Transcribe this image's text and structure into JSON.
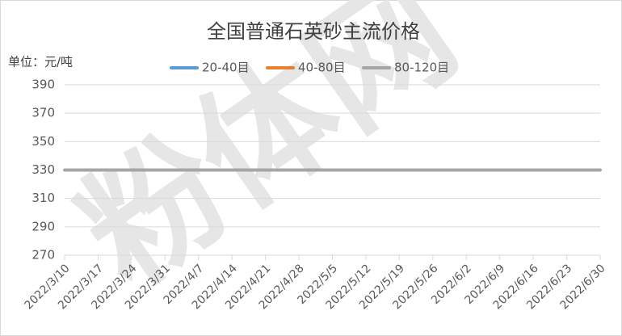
{
  "chart_data": {
    "type": "line",
    "title": "全国普通石英砂主流价格",
    "unit_label": "单位：元/吨",
    "watermark": "粉体网",
    "categories": [
      "2022/3/10",
      "2022/3/17",
      "2022/3/24",
      "2022/3/31",
      "2022/4/7",
      "2022/4/14",
      "2022/4/21",
      "2022/4/28",
      "2022/5/5",
      "2022/5/12",
      "2022/5/19",
      "2022/5/26",
      "2022/6/2",
      "2022/6/9",
      "2022/6/16",
      "2022/6/23",
      "2022/6/30"
    ],
    "series": [
      {
        "name": "20-40目",
        "color": "#5b9bd5",
        "values": [
          330,
          330,
          330,
          330,
          330,
          330,
          330,
          330,
          330,
          330,
          330,
          330,
          330,
          330,
          330,
          330,
          330
        ]
      },
      {
        "name": "40-80目",
        "color": "#ed7d31",
        "values": [
          330,
          330,
          330,
          330,
          330,
          330,
          330,
          330,
          330,
          330,
          330,
          330,
          330,
          330,
          330,
          330,
          330
        ]
      },
      {
        "name": "80-120目",
        "color": "#a5a5a5",
        "values": [
          330,
          330,
          330,
          330,
          330,
          330,
          330,
          330,
          330,
          330,
          330,
          330,
          330,
          330,
          330,
          330,
          330
        ]
      }
    ],
    "ylim": [
      270,
      390
    ],
    "yticks": [
      270,
      290,
      310,
      330,
      350,
      370,
      390
    ],
    "grid": true,
    "legend": "top"
  }
}
